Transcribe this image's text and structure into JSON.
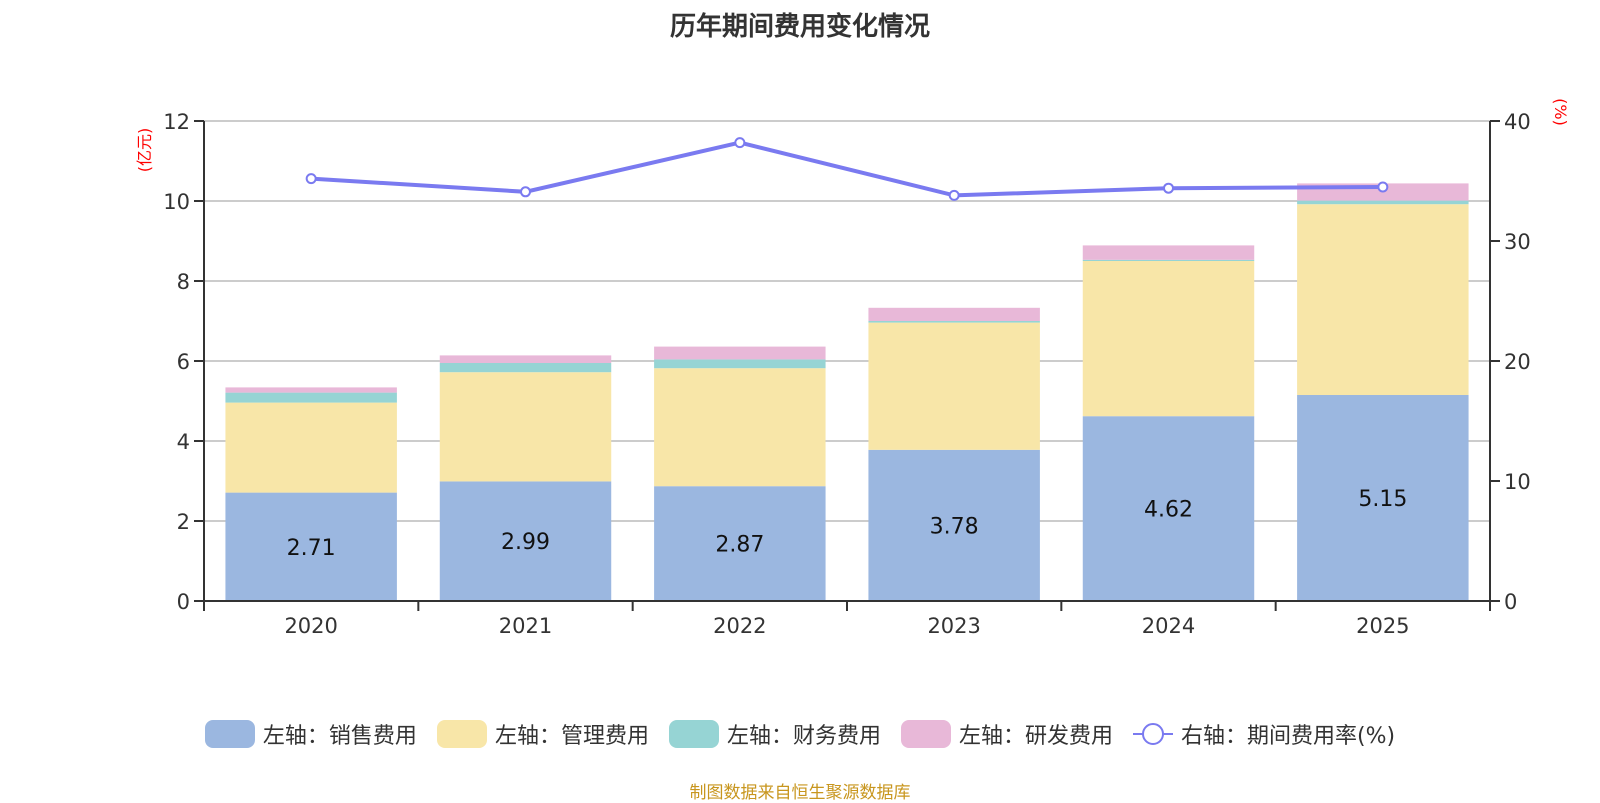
{
  "title": "历年期间费用变化情况",
  "source": "制图数据来自恒生聚源数据库",
  "colors": {
    "sales": "#9bb7e0",
    "management": "#f8e6a8",
    "finance": "#96d4d4",
    "rd": "#e8b8d8",
    "rate_line": "#7a7af0",
    "axis": "#333333",
    "grid": "#cccccc",
    "unit": "#ff0000"
  },
  "chart_data": {
    "type": "bar",
    "stacked": true,
    "title": "历年期间费用变化情况",
    "categories": [
      "2020",
      "2021",
      "2022",
      "2023",
      "2024",
      "2025"
    ],
    "left_axis": {
      "label": "(亿元)",
      "ylim": [
        0,
        12
      ],
      "ticks": [
        "0",
        "2",
        "4",
        "6",
        "8",
        "10",
        "12"
      ]
    },
    "right_axis": {
      "label": "(%)",
      "ylim": [
        0,
        40
      ],
      "ticks": [
        "0",
        "10",
        "20",
        "30",
        "40"
      ]
    },
    "grid": true,
    "legend_position": "bottom",
    "series": [
      {
        "key": "sales",
        "name": "左轴：销售费用",
        "axis": "left",
        "type": "bar",
        "values": [
          2.71,
          2.99,
          2.87,
          3.78,
          4.62,
          5.15
        ],
        "data_labels": [
          "2.71",
          "2.99",
          "2.87",
          "3.78",
          "4.62",
          "5.15"
        ]
      },
      {
        "key": "management",
        "name": "左轴：管理费用",
        "axis": "left",
        "type": "bar",
        "values": [
          2.25,
          2.73,
          2.95,
          3.18,
          3.88,
          4.77
        ]
      },
      {
        "key": "finance",
        "name": "左轴：财务费用",
        "axis": "left",
        "type": "bar",
        "values": [
          0.25,
          0.23,
          0.22,
          0.04,
          0.03,
          0.09
        ]
      },
      {
        "key": "rd",
        "name": "左轴：研发费用",
        "axis": "left",
        "type": "bar",
        "values": [
          0.13,
          0.19,
          0.32,
          0.33,
          0.36,
          0.43
        ]
      },
      {
        "key": "rate_line",
        "name": "右轴：期间费用率(%)",
        "axis": "right",
        "type": "line",
        "values": [
          35.2,
          34.1,
          38.2,
          33.8,
          34.4,
          34.5
        ]
      }
    ]
  }
}
